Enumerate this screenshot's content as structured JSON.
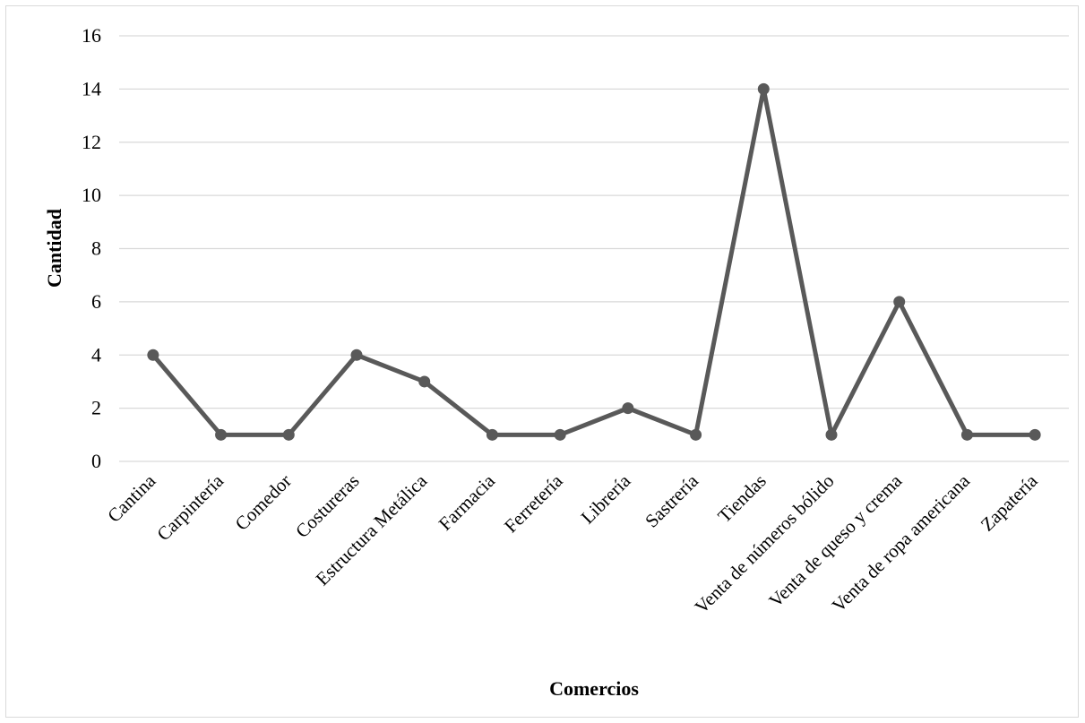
{
  "chart_data": {
    "type": "line",
    "title": "",
    "xlabel": "Comercios",
    "ylabel": "Cantidad",
    "ylim": [
      0,
      16
    ],
    "yticks": [
      0,
      2,
      4,
      6,
      8,
      10,
      12,
      14,
      16
    ],
    "grid": "horizontal",
    "legend": "none",
    "line_color": "#595959",
    "grid_color": "#d9d9d9",
    "categories": [
      "Cantina",
      "Carpintería",
      "Comedor",
      "Costureras",
      "Estructura Metálica",
      "Farmacia",
      "Ferretería",
      "Librería",
      "Sastrería",
      "Tiendas",
      "Venta de números bólido",
      "Venta de queso y crema",
      "Venta de ropa americana",
      "Zapatería"
    ],
    "series": [
      {
        "values": [
          4,
          1,
          1,
          4,
          3,
          1,
          1,
          2,
          1,
          14,
          1,
          6,
          1,
          1
        ]
      }
    ]
  }
}
